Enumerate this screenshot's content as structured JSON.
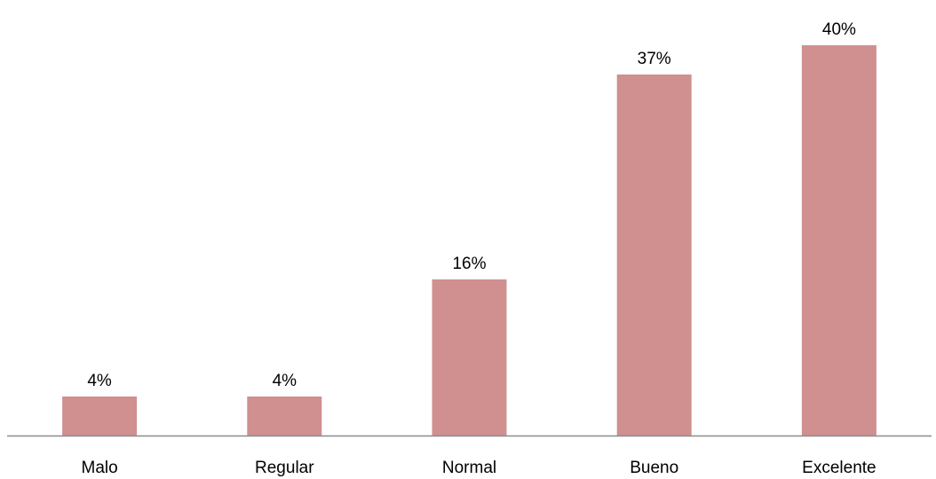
{
  "chart_data": {
    "type": "bar",
    "title": "",
    "xlabel": "",
    "ylabel": "",
    "categories": [
      "Malo",
      "Regular",
      "Normal",
      "Bueno",
      "Excelente"
    ],
    "values": [
      4,
      4,
      16,
      37,
      40
    ],
    "value_labels": [
      "4%",
      "4%",
      "16%",
      "37%",
      "40%"
    ],
    "unit": "%",
    "ylim": [
      0,
      40
    ],
    "grid": false,
    "legend": "none",
    "colors": {
      "bar": "#d09090",
      "axis": "#8c8c8c",
      "text": "#000000"
    }
  }
}
